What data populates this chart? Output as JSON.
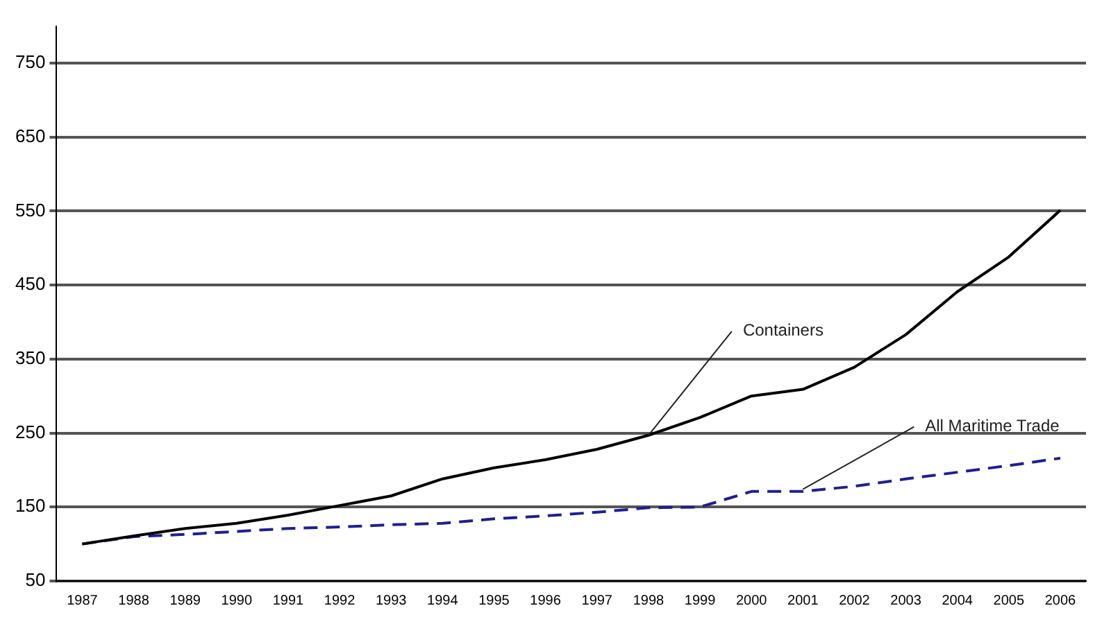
{
  "chart_data": {
    "type": "line",
    "categories": [
      "1987",
      "1988",
      "1989",
      "1990",
      "1991",
      "1992",
      "1993",
      "1994",
      "1995",
      "1996",
      "1997",
      "1998",
      "1999",
      "2000",
      "2001",
      "2002",
      "2003",
      "2004",
      "2005",
      "2006"
    ],
    "series": [
      {
        "color": "#000000",
        "line_style": "solid",
        "values": [
          100,
          111,
          121,
          128,
          139,
          152,
          165,
          188,
          203,
          214,
          228,
          247,
          271,
          300,
          309,
          339,
          383,
          441,
          488,
          551
        ]
      },
      {
        "color": "#1f1f8f",
        "line_style": "dashed",
        "values": [
          100,
          110,
          113,
          117,
          121,
          123,
          126,
          128,
          134,
          138,
          143,
          149,
          150,
          171,
          171,
          178,
          188,
          197,
          206,
          216
        ]
      }
    ],
    "ylim": [
      50,
      800
    ],
    "yticks": [
      50,
      150,
      250,
      350,
      450,
      550,
      650,
      750
    ],
    "grid": "y",
    "legend": false,
    "marker": "none",
    "annotations": [
      {
        "text": "Containers",
        "x": "1998",
        "y": 247
      },
      {
        "text": "All Maritime Trade",
        "x": "2001",
        "y": 174
      }
    ]
  }
}
